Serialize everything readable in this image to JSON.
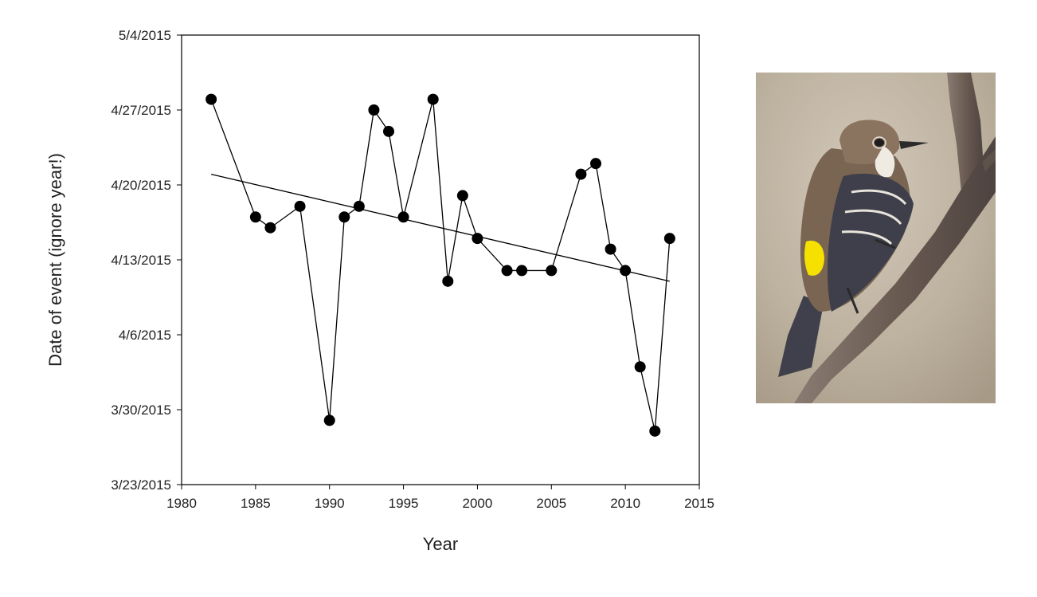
{
  "chart_data": {
    "type": "scatter",
    "title": "",
    "xlabel": "Year",
    "ylabel": "Date of event (ignore year!)",
    "xlim": [
      1980,
      2015
    ],
    "ylim": [
      "3/23/2015",
      "5/4/2015"
    ],
    "x_ticks": [
      "1980",
      "1985",
      "1990",
      "1995",
      "2000",
      "2005",
      "2010",
      "2015"
    ],
    "y_ticks": [
      "3/23/2015",
      "3/30/2015",
      "4/6/2015",
      "4/13/2015",
      "4/20/2015",
      "4/27/2015",
      "5/4/2015"
    ],
    "grid": false,
    "legend": "none",
    "series": [
      {
        "style": "black markers connected by line",
        "x": [
          1982,
          1985,
          1986,
          1988,
          1990,
          1991,
          1992,
          1993,
          1994,
          1995,
          1997,
          1998,
          1999,
          2000,
          2002,
          2003,
          2005,
          2007,
          2008,
          2009,
          2010,
          2011,
          2012,
          2013
        ],
        "y": [
          "4/28/2015",
          "4/17/2015",
          "4/16/2015",
          "4/18/2015",
          "3/29/2015",
          "4/17/2015",
          "4/18/2015",
          "4/27/2015",
          "4/25/2015",
          "4/17/2015",
          "4/28/2015",
          "4/11/2015",
          "4/19/2015",
          "4/15/2015",
          "4/12/2015",
          "4/12/2015",
          "4/12/2015",
          "4/21/2015",
          "4/22/2015",
          "4/14/2015",
          "4/12/2015",
          "4/3/2015",
          "3/28/2015",
          "4/15/2015"
        ]
      }
    ],
    "trendline": {
      "type": "linear",
      "x": [
        1982,
        2013
      ],
      "y": [
        "4/21/2015",
        "4/11/2015"
      ]
    }
  },
  "image": {
    "subject": "bird-on-branch",
    "colors": {
      "background": "#c7bcad",
      "bird_brown": "#7a6552",
      "bird_dark": "#3e3f4a",
      "rump_yellow": "#f5e000",
      "branch": "#6e5f55"
    }
  }
}
